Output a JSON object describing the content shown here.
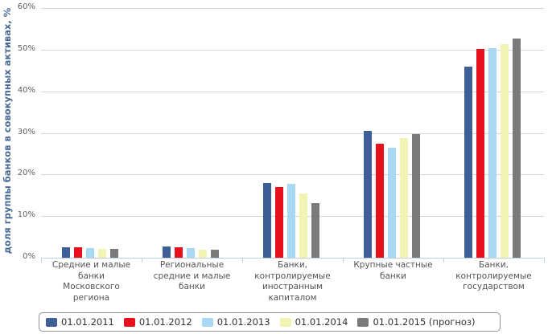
{
  "chart_data": {
    "type": "bar",
    "title": "",
    "xlabel": "",
    "ylabel": "доля группы банков в совокупных активах, %",
    "ylim": [
      0,
      60
    ],
    "yticks": [
      "0%",
      "10%",
      "20%",
      "30%",
      "40%",
      "50%",
      "60%"
    ],
    "grid": true,
    "legend_position": "bottom",
    "categories": [
      "Средние и малые банки Московского региона",
      "Региональные средние и малые банки",
      "Банки, контролируемые иностранным капиталом",
      "Крупные частные банки",
      "Банки, контролируемые государством"
    ],
    "series": [
      {
        "name": "01.01.2011",
        "color": "#3d5f95",
        "values": [
          2.5,
          2.7,
          18.0,
          30.5,
          46.0
        ]
      },
      {
        "name": "01.01.2012",
        "color": "#e8101c",
        "values": [
          2.5,
          2.5,
          17.0,
          27.4,
          50.2
        ]
      },
      {
        "name": "01.01.2013",
        "color": "#a8d8f4",
        "values": [
          2.3,
          2.3,
          17.8,
          26.4,
          50.4
        ]
      },
      {
        "name": "01.01.2014",
        "color": "#f2f4b4",
        "values": [
          2.1,
          2.0,
          15.4,
          28.8,
          51.4
        ]
      },
      {
        "name": "01.01.2015 (прогноз)",
        "color": "#7a7a7a",
        "values": [
          2.1,
          1.9,
          13.1,
          29.7,
          52.7
        ]
      }
    ]
  },
  "category_lines": [
    [
      "Средние и малые",
      "банки",
      "Московского",
      "региона"
    ],
    [
      "Региональные",
      "средние и малые",
      "банки"
    ],
    [
      "Банки,",
      "контролируемые",
      "иностранным",
      "капиталом"
    ],
    [
      "Крупные частные",
      "банки"
    ],
    [
      "Банки,",
      "контролируемые",
      "государством"
    ]
  ]
}
